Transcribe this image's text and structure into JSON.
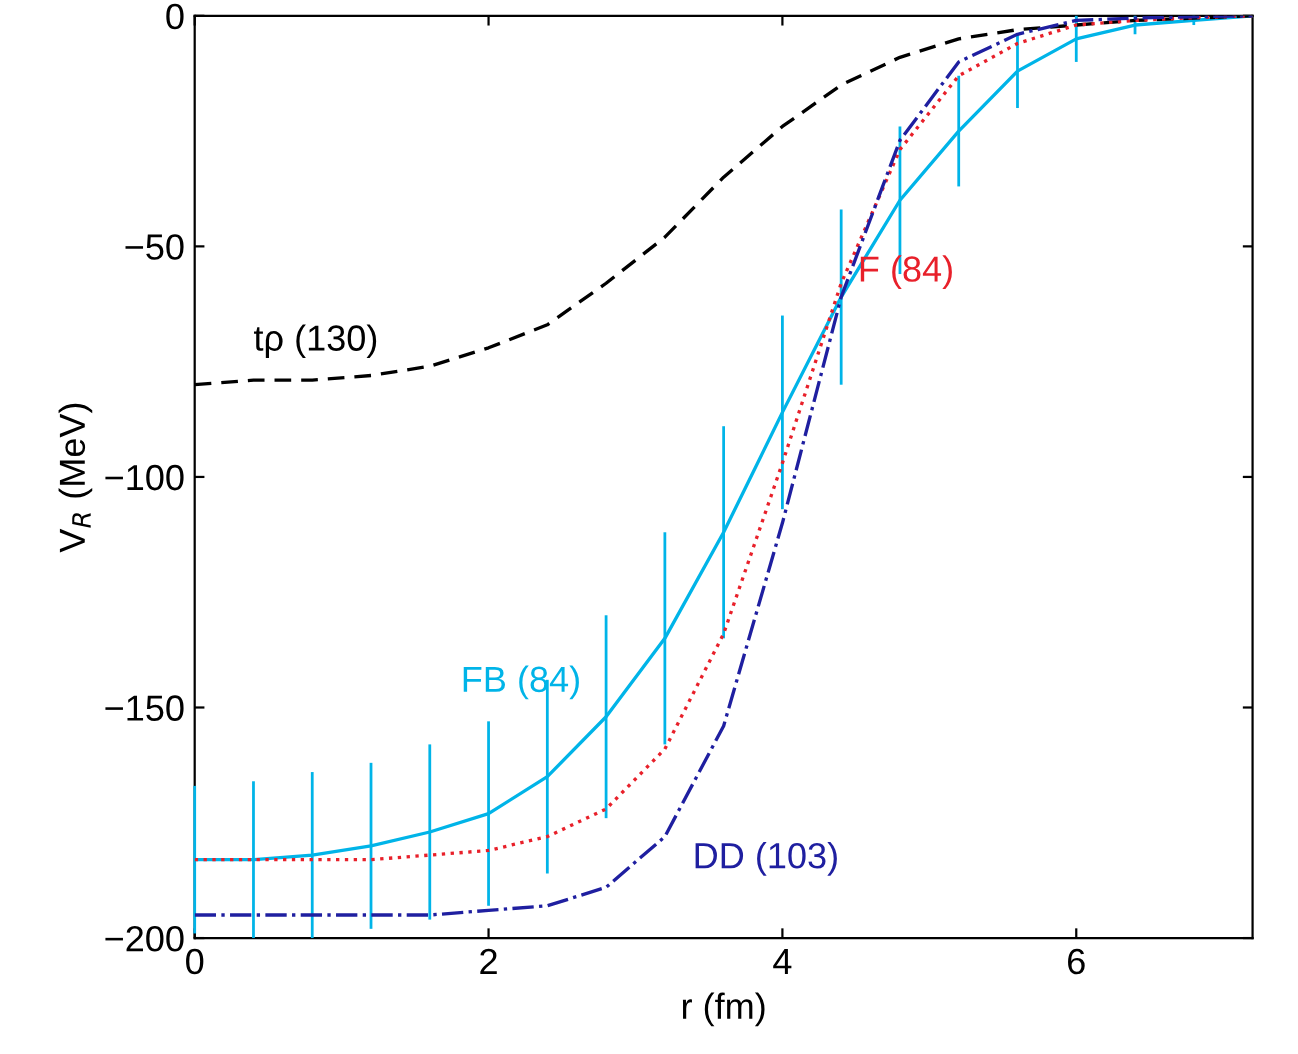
{
  "chart_data": {
    "type": "line",
    "xlabel": "r (fm)",
    "ylabel": "V$_{R}$ (MeV)",
    "x": [
      0,
      0.4,
      0.8,
      1.2,
      1.6,
      2.0,
      2.4,
      2.8,
      3.2,
      3.6,
      4.0,
      4.4,
      4.8,
      5.2,
      5.6,
      6.0,
      6.4,
      6.8,
      7.2
    ],
    "series": [
      {
        "color": "#000000",
        "line_style": "dashed",
        "values": [
          -80,
          -79,
          -79,
          -78,
          -76,
          -72,
          -67,
          -58,
          -48,
          -35,
          -24,
          -15,
          -9,
          -5,
          -3,
          -2,
          -1,
          -0.5,
          0
        ]
      },
      {
        "color": "#e8202a",
        "line_style": "dotted",
        "values": [
          -183,
          -183,
          -183,
          -183,
          -182,
          -181,
          -178,
          -172,
          -159,
          -134,
          -97,
          -58,
          -29,
          -13,
          -6,
          -2,
          -1,
          -0.4,
          0
        ]
      },
      {
        "color": "#00b4e8",
        "line_style": "solid",
        "values": [
          -183,
          -183,
          -182,
          -180,
          -177,
          -173,
          -165,
          -152,
          -135,
          -112,
          -86,
          -61,
          -40,
          -25,
          -12,
          -5,
          -2,
          -1,
          0
        ],
        "errors": [
          16,
          17,
          18,
          18,
          19,
          20,
          21,
          22,
          23,
          23,
          21,
          19,
          16,
          12,
          8,
          5,
          2,
          1,
          0
        ]
      },
      {
        "color": "#1f1fa0",
        "line_style": "dashdot",
        "values": [
          -195,
          -195,
          -195,
          -195,
          -195,
          -194,
          -193,
          -189,
          -178,
          -154,
          -110,
          -61,
          -27,
          -10,
          -4,
          -1,
          -0.5,
          -0.2,
          0
        ]
      }
    ],
    "annotations": [
      {
        "text": "tρ (130)",
        "x": 0.4,
        "y": -79
      },
      {
        "text": "F (84)",
        "x": 4.4,
        "y": -58
      },
      {
        "text": "FB (84)",
        "x": 2.0,
        "y": -153
      },
      {
        "text": "DD (103)",
        "x": 3.2,
        "y": -178
      }
    ],
    "xlim": [
      0,
      7.2
    ],
    "ylim": [
      -200,
      0
    ],
    "xticks": [
      0,
      2,
      4,
      6
    ],
    "yticks": [
      {
        "value": -200,
        "label": "−200"
      },
      {
        "value": -150,
        "label": "−150"
      },
      {
        "value": -100,
        "label": "−100"
      },
      {
        "value": -50,
        "label": "−50"
      },
      0
    ],
    "grid": false,
    "legend": false
  }
}
